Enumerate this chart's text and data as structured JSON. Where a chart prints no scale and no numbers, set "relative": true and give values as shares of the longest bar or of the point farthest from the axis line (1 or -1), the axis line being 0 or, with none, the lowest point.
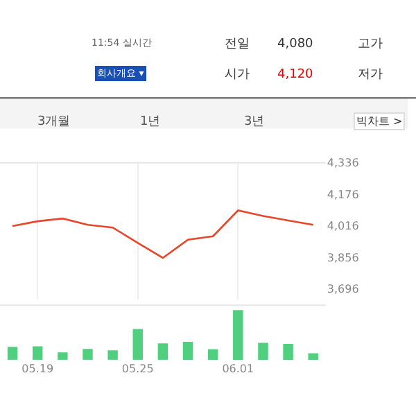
{
  "chart_data": [
    {
      "type": "other",
      "annotations": [
        "11:54 실시간",
        "회사개요 ▾",
        "전일",
        "4,080",
        "고가",
        "시가",
        "4,120",
        "저가",
        "3개월",
        "1년",
        "3년",
        "빅차트 >"
      ]
    },
    {
      "type": "line",
      "categories": [
        null,
        "05.19",
        null,
        null,
        null,
        "05.25",
        null,
        null,
        null,
        "06.01",
        null,
        null,
        null
      ],
      "series": [
        {
          "color": "#e8462a",
          "values": [
            4015,
            4039,
            4053,
            4021,
            4007,
            3929,
            3853,
            3945,
            3963,
            4094,
            4066,
            4043,
            4021
          ]
        }
      ],
      "ylim": [
        3640,
        4336
      ],
      "yticks": [
        {
          "value": 3696,
          "label": "3,696"
        },
        {
          "value": 3856,
          "label": "3,856"
        },
        {
          "value": 4016,
          "label": "4,016"
        },
        {
          "value": 4176,
          "label": "4,176"
        },
        {
          "value": 4336,
          "label": "4,336"
        }
      ],
      "grid": "x",
      "tick_labels": "y",
      "marker": "none",
      "line_style": "solid"
    },
    {
      "type": "bar",
      "relative": true,
      "categories": [
        null,
        "05.19",
        null,
        null,
        null,
        "05.25",
        null,
        null,
        null,
        "06.01",
        null,
        null,
        null
      ],
      "series": [
        {
          "color": "#4fd07f",
          "values": [
            0.26,
            0.27,
            0.15,
            0.22,
            0.19,
            0.62,
            0.33,
            0.36,
            0.21,
            1,
            0.34,
            0.32,
            0.13
          ]
        }
      ],
      "tick_labels": "x"
    }
  ]
}
